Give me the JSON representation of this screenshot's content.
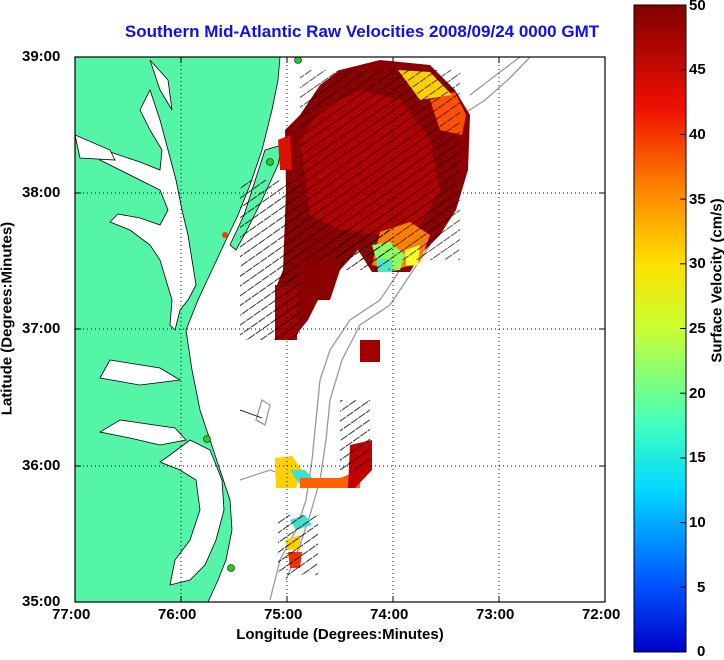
{
  "title": "Southern Mid-Atlantic Raw Velocities 2008/09/24 0000 GMT",
  "xlabel": "Longitude (Degrees:Minutes)",
  "ylabel": "Latitude (Degrees:Minutes)",
  "x_ticks": [
    "77:00",
    "76:00",
    "75:00",
    "74:00",
    "73:00",
    "72:00"
  ],
  "y_ticks": [
    "39:00",
    "38:00",
    "37:00",
    "36:00",
    "35:00"
  ],
  "colorbar": {
    "label": "Surface Velocity (cm/s)",
    "ticks": [
      "0",
      "5",
      "10",
      "15",
      "20",
      "25",
      "30",
      "35",
      "40",
      "45",
      "50"
    ],
    "min": 0,
    "max": 50
  },
  "colors": {
    "land": "#55f5a8",
    "title": "#1010ee",
    "station": "#22cc22"
  }
}
